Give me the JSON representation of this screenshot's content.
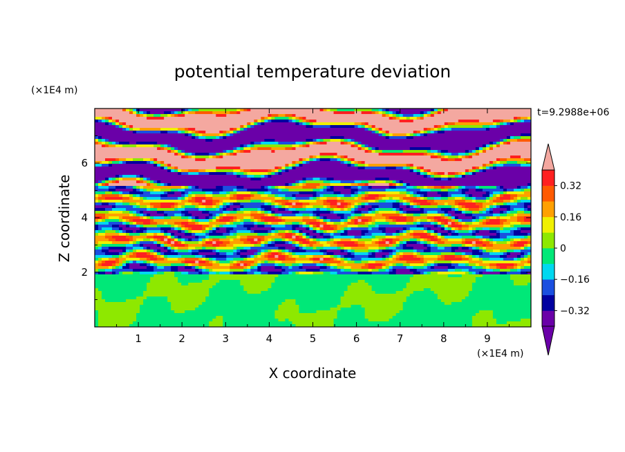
{
  "chart_data": {
    "type": "heatmap",
    "title": "potential temperature deviation",
    "xlabel": "X coordinate",
    "ylabel": "Z coordinate",
    "x_unit": "(×1E4 m)",
    "y_unit": "(×1E4 m)",
    "time_label": "t=9.2988e+06",
    "xlim": [
      0,
      10
    ],
    "ylim": [
      0,
      8
    ],
    "x_ticks": [
      1,
      2,
      3,
      4,
      5,
      6,
      7,
      8,
      9
    ],
    "y_ticks": [
      2,
      4,
      6
    ],
    "colorbar": {
      "levels": [
        -0.4,
        -0.32,
        -0.24,
        -0.16,
        -0.08,
        0,
        0.08,
        0.16,
        0.24,
        0.32,
        0.4
      ],
      "labels": [
        "-0.32",
        "-0.16",
        "0",
        "0.16",
        "0.32"
      ],
      "label_values": [
        -0.32,
        -0.16,
        0,
        0.16,
        0.32
      ],
      "band_colors": [
        "#6a00a8",
        "#0000a0",
        "#1a4fe0",
        "#00d8f0",
        "#00e878",
        "#8ee800",
        "#f0f000",
        "#ffa000",
        "#ff5a00",
        "#ff2020"
      ],
      "under_color": "#6a00a8",
      "over_color": "#f4a8a0",
      "extend": "both"
    },
    "structure_notes": "upper layer (z>5.2) dominated by alternating pink (>0.4) and purple (<-0.4) horizontal bands; middle layer (2<z<5.2) multicolored stratified bands; bottom layer (z<2) mostly green (-0.08..0) with light green (0..0.08) plumes"
  }
}
